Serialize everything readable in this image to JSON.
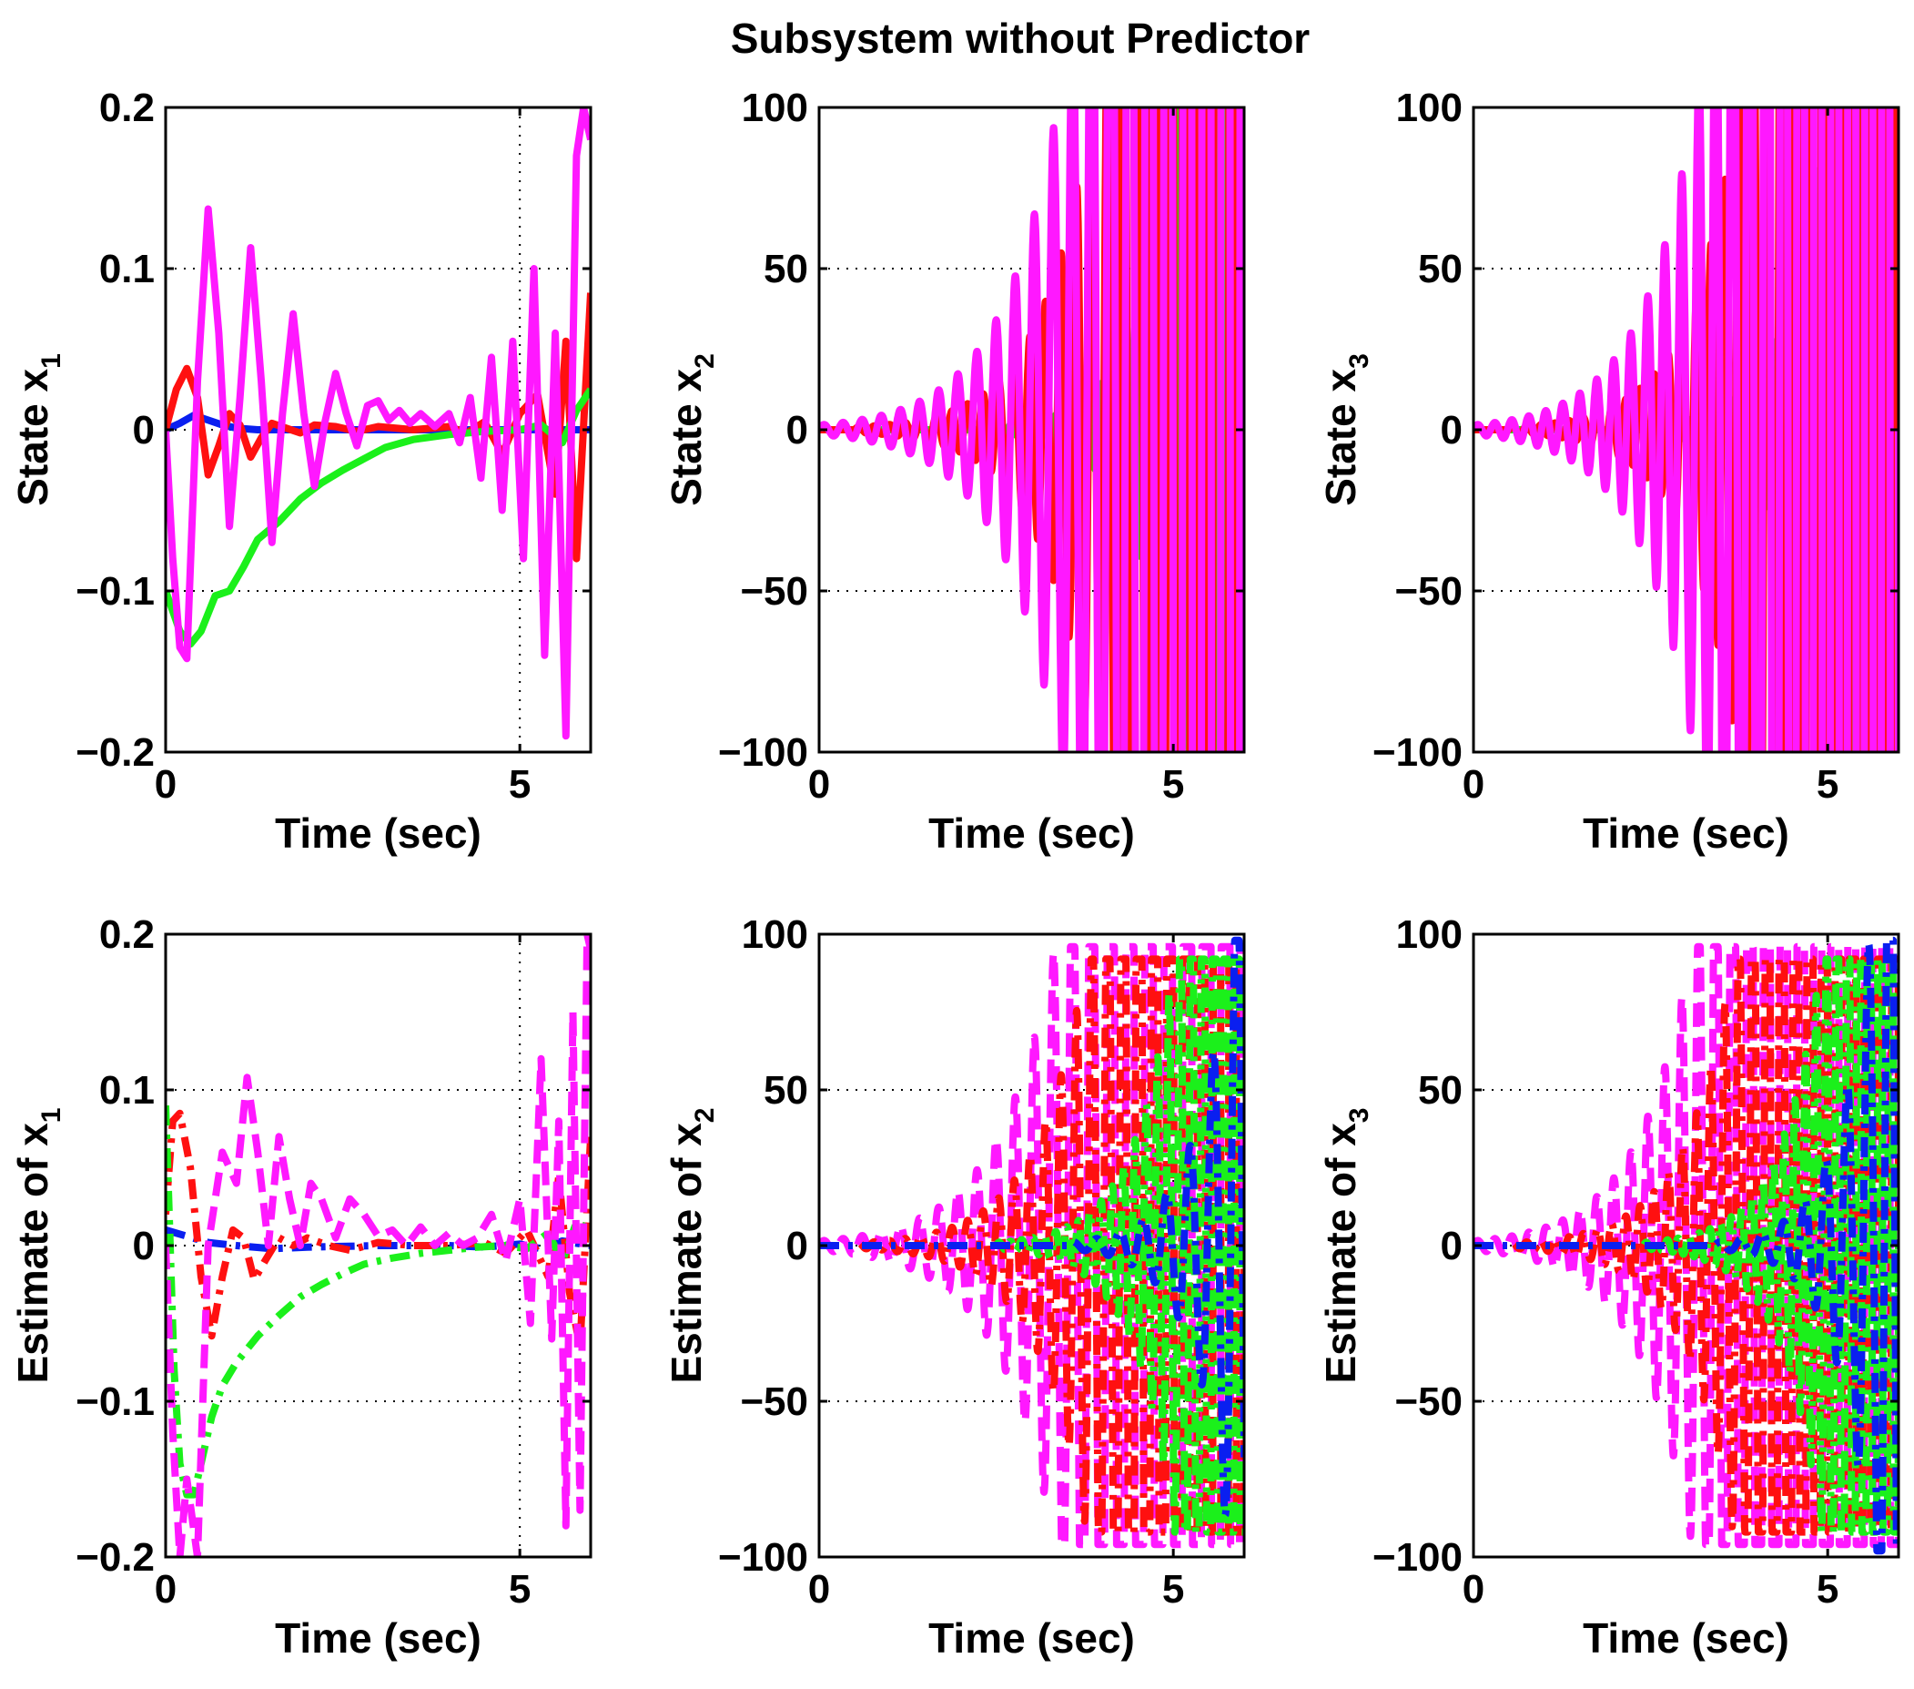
{
  "figure_title": "Subsystem without Predictor",
  "colors": {
    "blue": "#0a1ff0",
    "red": "#ff1010",
    "green": "#1bf01b",
    "magenta": "#ff18ff",
    "axis": "#000000",
    "grid": "#000000"
  },
  "chart_data": [
    {
      "type": "line",
      "panel": "top-left",
      "xlabel": "Time (sec)",
      "ylabel_main": "State x",
      "ylabel_sub": "1",
      "xlim": [
        0,
        6
      ],
      "ylim": [
        -0.2,
        0.2
      ],
      "xticks": [
        0,
        5
      ],
      "xtick_labels": [
        "0",
        "5"
      ],
      "yticks": [
        -0.2,
        -0.1,
        0,
        0.1,
        0.2
      ],
      "ytick_labels": [
        "−0.2",
        "−0.1",
        "0",
        "0.1",
        "0.2"
      ],
      "grid": true,
      "series": [
        {
          "name": "x1 blue",
          "color": "blue",
          "style": "solid",
          "x": [
            0,
            0.2,
            0.4,
            0.6,
            0.8,
            1.0,
            1.3,
            1.6,
            2.0,
            2.5,
            3.0,
            3.5,
            4.0,
            4.5,
            5.0,
            5.5,
            6.0
          ],
          "y": [
            0,
            0.004,
            0.009,
            0.006,
            0.003,
            0.001,
            0.0,
            0.0,
            0.0,
            0.0,
            0.0,
            0.0,
            0.0,
            0.0,
            0.0,
            0.0,
            0.0
          ]
        },
        {
          "name": "x1 red",
          "color": "red",
          "style": "solid",
          "x": [
            0,
            0.15,
            0.3,
            0.45,
            0.6,
            0.75,
            0.9,
            1.05,
            1.2,
            1.35,
            1.5,
            1.7,
            1.9,
            2.1,
            2.4,
            2.7,
            3.0,
            3.5,
            4.0,
            4.25,
            4.5,
            4.75,
            5.0,
            5.25,
            5.5,
            5.65,
            5.8,
            6.0
          ],
          "y": [
            0,
            0.025,
            0.038,
            0.02,
            -0.028,
            -0.01,
            0.01,
            0.003,
            -0.017,
            -0.005,
            0.004,
            0.001,
            -0.002,
            0.003,
            0.002,
            -0.001,
            0.002,
            0.0,
            0.002,
            -0.002,
            0.005,
            -0.015,
            0.01,
            0.022,
            -0.04,
            0.055,
            -0.08,
            0.085
          ]
        },
        {
          "name": "x1 green",
          "color": "green",
          "style": "solid",
          "x": [
            0,
            0.2,
            0.35,
            0.5,
            0.7,
            0.9,
            1.1,
            1.3,
            1.6,
            1.9,
            2.2,
            2.5,
            2.8,
            3.1,
            3.5,
            4.0,
            4.5,
            5.0,
            5.3,
            5.6,
            5.8,
            6.0
          ],
          "y": [
            -0.1,
            -0.125,
            -0.133,
            -0.125,
            -0.103,
            -0.1,
            -0.085,
            -0.068,
            -0.057,
            -0.043,
            -0.033,
            -0.025,
            -0.018,
            -0.011,
            -0.006,
            -0.003,
            -0.001,
            0.0,
            0.003,
            -0.008,
            0.012,
            0.025
          ]
        },
        {
          "name": "x1 magenta",
          "color": "magenta",
          "style": "solid",
          "x": [
            0,
            0.1,
            0.2,
            0.3,
            0.45,
            0.6,
            0.75,
            0.9,
            1.05,
            1.2,
            1.35,
            1.5,
            1.65,
            1.8,
            1.95,
            2.1,
            2.25,
            2.4,
            2.55,
            2.7,
            2.85,
            3.0,
            3.15,
            3.3,
            3.45,
            3.6,
            3.8,
            4.0,
            4.15,
            4.3,
            4.45,
            4.6,
            4.75,
            4.9,
            5.05,
            5.2,
            5.35,
            5.5,
            5.65,
            5.8,
            5.9,
            6.0
          ],
          "y": [
            0,
            -0.08,
            -0.135,
            -0.142,
            0.03,
            0.137,
            0.06,
            -0.06,
            0.02,
            0.113,
            0.03,
            -0.07,
            0.01,
            0.072,
            0.01,
            -0.035,
            0.005,
            0.035,
            0.01,
            -0.01,
            0.015,
            0.018,
            0.006,
            0.012,
            0.004,
            0.01,
            0.002,
            0.01,
            -0.008,
            0.02,
            -0.03,
            0.045,
            -0.05,
            0.055,
            -0.08,
            0.1,
            -0.14,
            0.06,
            -0.19,
            0.17,
            0.2,
            0.18
          ]
        }
      ]
    },
    {
      "type": "line",
      "panel": "top-middle",
      "xlabel": "Time (sec)",
      "ylabel_main": "State x",
      "ylabel_sub": "2",
      "xlim": [
        0,
        6
      ],
      "ylim": [
        -100,
        100
      ],
      "xticks": [
        0,
        5
      ],
      "xtick_labels": [
        "0",
        "5"
      ],
      "yticks": [
        -100,
        -50,
        0,
        50,
        100
      ],
      "ytick_labels": [
        "−100",
        "−50",
        "0",
        "50",
        "100"
      ],
      "grid": true,
      "series": [
        {
          "name": "x2 blue",
          "color": "blue",
          "style": "solid",
          "oscillation": {
            "start": 5.0,
            "period": 0.1,
            "growth": 2.3,
            "amp0": 0.6,
            "max": 140
          }
        },
        {
          "name": "x2 green",
          "color": "green",
          "style": "solid",
          "oscillation": {
            "start": 2.5,
            "period": 0.16,
            "growth": 1.8,
            "amp0": 1.0,
            "max": 140
          }
        },
        {
          "name": "x2 red",
          "color": "red",
          "style": "solid",
          "oscillation": {
            "start": 0.5,
            "period": 0.22,
            "growth": 1.45,
            "amp0": 0.8,
            "max": 140
          }
        },
        {
          "name": "x2 magenta",
          "color": "magenta",
          "style": "solid",
          "oscillation": {
            "start": 0.0,
            "period": 0.27,
            "growth": 1.25,
            "amp0": 1.5,
            "max": 140
          }
        }
      ]
    },
    {
      "type": "line",
      "panel": "top-right",
      "xlabel": "Time (sec)",
      "ylabel_main": "State x",
      "ylabel_sub": "3",
      "xlim": [
        0,
        6
      ],
      "ylim": [
        -100,
        100
      ],
      "xticks": [
        0,
        5
      ],
      "xtick_labels": [
        "0",
        "5"
      ],
      "yticks": [
        -100,
        -50,
        0,
        50,
        100
      ],
      "ytick_labels": [
        "−100",
        "−50",
        "0",
        "50",
        "100"
      ],
      "grid": true,
      "series": [
        {
          "name": "x3 blue",
          "color": "blue",
          "style": "solid",
          "oscillation": {
            "start": 5.0,
            "period": 0.1,
            "growth": 2.3,
            "amp0": 0.6,
            "max": 140
          }
        },
        {
          "name": "x3 green",
          "color": "green",
          "style": "solid",
          "oscillation": {
            "start": 2.4,
            "period": 0.15,
            "growth": 1.8,
            "amp0": 1.0,
            "max": 140
          }
        },
        {
          "name": "x3 red",
          "color": "red",
          "style": "solid",
          "oscillation": {
            "start": 0.5,
            "period": 0.2,
            "growth": 1.5,
            "amp0": 0.8,
            "max": 140
          }
        },
        {
          "name": "x3 magenta",
          "color": "magenta",
          "style": "solid",
          "oscillation": {
            "start": 0.0,
            "period": 0.24,
            "growth": 1.35,
            "amp0": 1.5,
            "max": 140
          }
        }
      ]
    },
    {
      "type": "line",
      "panel": "bottom-left",
      "xlabel": "Time (sec)",
      "ylabel_main": "Estimate of x",
      "ylabel_sub": "1",
      "xlim": [
        0,
        6
      ],
      "ylim": [
        -0.2,
        0.2
      ],
      "xticks": [
        0,
        5
      ],
      "xtick_labels": [
        "0",
        "5"
      ],
      "yticks": [
        -0.2,
        -0.1,
        0,
        0.1,
        0.2
      ],
      "ytick_labels": [
        "−0.2",
        "−0.1",
        "0",
        "0.1",
        "0.2"
      ],
      "grid": true,
      "series": [
        {
          "name": "x1 estimate blue",
          "color": "blue",
          "style": "dashdot",
          "x": [
            0,
            0.3,
            0.6,
            1.0,
            1.5,
            2.0,
            3.0,
            4.0,
            4.5,
            5.0,
            5.3,
            5.6,
            6.0
          ],
          "y": [
            0.01,
            0.006,
            0.002,
            0.0,
            -0.002,
            -0.001,
            0.0,
            0.0,
            -0.001,
            0.001,
            -0.002,
            0.003,
            0.0
          ]
        },
        {
          "name": "x1 estimate red",
          "color": "red",
          "style": "dashdot",
          "x": [
            0,
            0.1,
            0.2,
            0.35,
            0.5,
            0.65,
            0.8,
            0.95,
            1.1,
            1.25,
            1.4,
            1.6,
            1.8,
            2.0,
            2.3,
            2.6,
            3.0,
            3.5,
            4.0,
            4.5,
            4.8,
            5.1,
            5.4,
            5.55,
            5.7,
            5.85,
            6.0
          ],
          "y": [
            0.02,
            0.08,
            0.085,
            0.05,
            -0.02,
            -0.058,
            -0.02,
            0.01,
            0.005,
            -0.022,
            -0.01,
            0.005,
            0.0,
            0.005,
            0.0,
            -0.003,
            0.002,
            0.0,
            0.0,
            0.002,
            -0.005,
            0.01,
            -0.02,
            0.045,
            -0.03,
            -0.065,
            0.07
          ]
        },
        {
          "name": "x1 estimate green",
          "color": "green",
          "style": "dashdot",
          "x": [
            0,
            0.05,
            0.12,
            0.2,
            0.3,
            0.4,
            0.5,
            0.65,
            0.8,
            1.0,
            1.3,
            1.6,
            1.9,
            2.2,
            2.5,
            2.8,
            3.2,
            3.6,
            4.0,
            4.4,
            4.8,
            5.1,
            5.4,
            5.6,
            5.8,
            6.0
          ],
          "y": [
            0.09,
            0.02,
            -0.08,
            -0.14,
            -0.16,
            -0.16,
            -0.14,
            -0.11,
            -0.09,
            -0.075,
            -0.058,
            -0.045,
            -0.033,
            -0.025,
            -0.018,
            -0.012,
            -0.008,
            -0.005,
            -0.003,
            -0.001,
            0.0,
            -0.002,
            0.008,
            -0.01,
            0.015,
            0.01
          ]
        },
        {
          "name": "x1 estimate magenta",
          "color": "magenta",
          "style": "dashed",
          "x": [
            0,
            0.1,
            0.2,
            0.3,
            0.45,
            0.6,
            0.8,
            1.0,
            1.15,
            1.3,
            1.45,
            1.6,
            1.75,
            1.9,
            2.05,
            2.2,
            2.4,
            2.6,
            2.8,
            3.0,
            3.2,
            3.4,
            3.6,
            3.8,
            4.0,
            4.2,
            4.4,
            4.6,
            4.8,
            5.0,
            5.15,
            5.3,
            5.45,
            5.55,
            5.65,
            5.75,
            5.85,
            5.95,
            6.0
          ],
          "y": [
            0,
            -0.12,
            -0.2,
            -0.15,
            -0.2,
            0.0,
            0.06,
            0.04,
            0.108,
            0.06,
            0.0,
            0.07,
            0.03,
            0.0,
            0.04,
            0.03,
            0.005,
            0.03,
            0.02,
            0.006,
            0.01,
            0.0,
            0.012,
            0.0,
            0.008,
            0.0,
            0.005,
            0.02,
            -0.01,
            0.03,
            -0.05,
            0.12,
            -0.06,
            0.08,
            -0.18,
            0.15,
            -0.17,
            0.2,
            0.19
          ]
        }
      ]
    },
    {
      "type": "line",
      "panel": "bottom-middle",
      "xlabel": "Time (sec)",
      "ylabel_main": "Estimate of x",
      "ylabel_sub": "2",
      "xlim": [
        0,
        6
      ],
      "ylim": [
        -100,
        100
      ],
      "xticks": [
        0,
        5
      ],
      "xtick_labels": [
        "0",
        "5"
      ],
      "yticks": [
        -100,
        -50,
        0,
        50,
        100
      ],
      "ytick_labels": [
        "−100",
        "−50",
        "0",
        "50",
        "100"
      ],
      "grid": true,
      "series": [
        {
          "name": "x2 estimate magenta",
          "color": "magenta",
          "style": "dashed",
          "oscillation": {
            "start": 0.0,
            "period": 0.27,
            "growth": 1.25,
            "amp0": 1.5,
            "max": 96
          }
        },
        {
          "name": "x2 estimate red",
          "color": "red",
          "style": "dashdot",
          "oscillation": {
            "start": 0.5,
            "period": 0.22,
            "growth": 1.45,
            "amp0": 0.8,
            "max": 92
          }
        },
        {
          "name": "x2 estimate green",
          "color": "green",
          "style": "dashdot",
          "oscillation": {
            "start": 2.5,
            "period": 0.16,
            "growth": 1.8,
            "amp0": 1.0,
            "max": 92
          }
        },
        {
          "name": "x2 estimate blue",
          "color": "blue",
          "style": "dashdot",
          "oscillation": {
            "start": 3.5,
            "period": 0.33,
            "growth": 2.0,
            "amp0": 1.0,
            "max": 98
          }
        }
      ]
    },
    {
      "type": "line",
      "panel": "bottom-right",
      "xlabel": "Time (sec)",
      "ylabel_main": "Estimate of x",
      "ylabel_sub": "3",
      "xlim": [
        0,
        6
      ],
      "ylim": [
        -100,
        100
      ],
      "xticks": [
        0,
        5
      ],
      "xtick_labels": [
        "0",
        "5"
      ],
      "yticks": [
        -100,
        -50,
        0,
        50,
        100
      ],
      "ytick_labels": [
        "−100",
        "−50",
        "0",
        "50",
        "100"
      ],
      "grid": true,
      "series": [
        {
          "name": "x3 estimate magenta",
          "color": "magenta",
          "style": "dashed",
          "oscillation": {
            "start": 0.0,
            "period": 0.24,
            "growth": 1.35,
            "amp0": 1.5,
            "max": 96
          }
        },
        {
          "name": "x3 estimate red",
          "color": "red",
          "style": "dashdot",
          "oscillation": {
            "start": 0.5,
            "period": 0.2,
            "growth": 1.5,
            "amp0": 0.8,
            "max": 92
          }
        },
        {
          "name": "x3 estimate green",
          "color": "green",
          "style": "dashdot",
          "oscillation": {
            "start": 2.4,
            "period": 0.15,
            "growth": 1.8,
            "amp0": 1.0,
            "max": 92
          }
        },
        {
          "name": "x3 estimate blue",
          "color": "blue",
          "style": "dashdot",
          "oscillation": {
            "start": 3.4,
            "period": 0.3,
            "growth": 2.1,
            "amp0": 1.0,
            "max": 98
          }
        }
      ]
    }
  ]
}
